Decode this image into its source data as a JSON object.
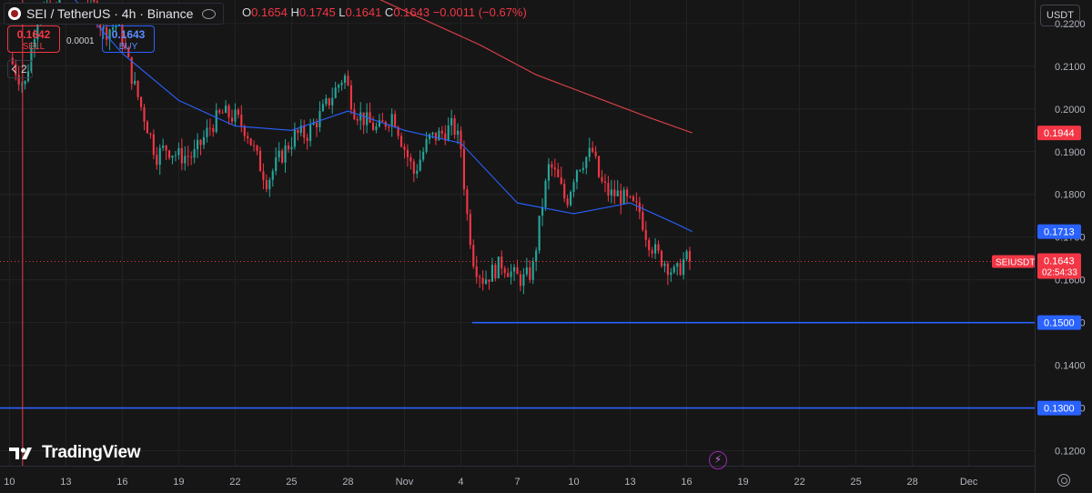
{
  "header": {
    "symbol_title": "SEI / TetherUS · 4h · Binance",
    "ohlc": {
      "o_label": "O",
      "o_value": "0.1654",
      "h_label": "H",
      "h_value": "0.1745",
      "l_label": "L",
      "l_value": "0.1641",
      "c_label": "C",
      "c_value": "0.1643",
      "change": "−0.0011 (−0.67%)"
    },
    "sell_price": "0.1642",
    "sell_label": "SELL",
    "buy_price": "0.1643",
    "buy_label": "BUY",
    "spread": "0.0001",
    "indicators_count": "2",
    "currency": "USDT"
  },
  "brand": {
    "logo_text": "TradingView"
  },
  "icons": {
    "coin": "sei-coin-icon",
    "eye": "eye-icon",
    "chevron": "chevron-down-icon",
    "bolt": "lightning-icon",
    "settings": "gear-icon"
  },
  "colors": {
    "background": "#161616",
    "up": "#26a69a",
    "down": "#f23645",
    "ma_fast": "#2962ff",
    "ma_slow": "#e0404a",
    "horizontal_line": "#2962ff",
    "grid": "#232323",
    "axis_text": "#b2b5be"
  },
  "chart_data": {
    "type": "candlestick",
    "y_ticks": [
      "0.1200",
      "0.1300",
      "0.1400",
      "0.1500",
      "0.1600",
      "0.1700",
      "0.1800",
      "0.1900",
      "0.2000",
      "0.2100",
      "0.2200"
    ],
    "ylim": [
      0.1165,
      0.2255
    ],
    "x_ticks": [
      {
        "label": "10",
        "t": 0
      },
      {
        "label": "13",
        "t": 3
      },
      {
        "label": "16",
        "t": 6
      },
      {
        "label": "19",
        "t": 9
      },
      {
        "label": "22",
        "t": 12
      },
      {
        "label": "25",
        "t": 15
      },
      {
        "label": "28",
        "t": 18
      },
      {
        "label": "Nov",
        "t": 21
      },
      {
        "label": "4",
        "t": 24
      },
      {
        "label": "7",
        "t": 27
      },
      {
        "label": "10",
        "t": 30
      },
      {
        "label": "13",
        "t": 33
      },
      {
        "label": "16",
        "t": 36
      },
      {
        "label": "19",
        "t": 39
      },
      {
        "label": "22",
        "t": 42
      },
      {
        "label": "25",
        "t": 45
      },
      {
        "label": "28",
        "t": 48
      },
      {
        "label": "Dec",
        "t": 51
      }
    ],
    "xlim": [
      -0.5,
      54.5
    ],
    "anchor_closes": [
      [
        0,
        0.212
      ],
      [
        0.8,
        0.205
      ],
      [
        1.6,
        0.225
      ],
      [
        2.3,
        0.221
      ],
      [
        3.1,
        0.235
      ],
      [
        4.0,
        0.23
      ],
      [
        5.0,
        0.218
      ],
      [
        5.8,
        0.22
      ],
      [
        6.6,
        0.206
      ],
      [
        7.4,
        0.195
      ],
      [
        7.8,
        0.189
      ],
      [
        8.3,
        0.191
      ],
      [
        9.0,
        0.189
      ],
      [
        9.8,
        0.189
      ],
      [
        10.7,
        0.196
      ],
      [
        11.3,
        0.199
      ],
      [
        12.0,
        0.198
      ],
      [
        12.6,
        0.195
      ],
      [
        13.2,
        0.188
      ],
      [
        13.7,
        0.183
      ],
      [
        14.3,
        0.188
      ],
      [
        15.2,
        0.194
      ],
      [
        15.8,
        0.194
      ],
      [
        16.6,
        0.199
      ],
      [
        17.4,
        0.205
      ],
      [
        17.8,
        0.208
      ],
      [
        18.3,
        0.2
      ],
      [
        19.0,
        0.197
      ],
      [
        19.6,
        0.195
      ],
      [
        20.4,
        0.199
      ],
      [
        20.9,
        0.192
      ],
      [
        21.5,
        0.185
      ],
      [
        22.3,
        0.193
      ],
      [
        22.9,
        0.194
      ],
      [
        23.6,
        0.196
      ],
      [
        24.0,
        0.191
      ],
      [
        24.3,
        0.176
      ],
      [
        24.7,
        0.164
      ],
      [
        25.2,
        0.16
      ],
      [
        25.7,
        0.162
      ],
      [
        26.2,
        0.164
      ],
      [
        26.8,
        0.161
      ],
      [
        27.3,
        0.16
      ],
      [
        27.8,
        0.162
      ],
      [
        28.3,
        0.177
      ],
      [
        28.7,
        0.187
      ],
      [
        29.1,
        0.184
      ],
      [
        29.6,
        0.178
      ],
      [
        30.1,
        0.186
      ],
      [
        30.5,
        0.188
      ],
      [
        31.0,
        0.19
      ],
      [
        31.4,
        0.183
      ],
      [
        31.9,
        0.18
      ],
      [
        32.4,
        0.18
      ],
      [
        32.9,
        0.178
      ],
      [
        33.5,
        0.176
      ],
      [
        33.9,
        0.17
      ],
      [
        34.4,
        0.166
      ],
      [
        34.9,
        0.164
      ],
      [
        35.4,
        0.161
      ],
      [
        35.9,
        0.165
      ],
      [
        36.3,
        0.1643
      ]
    ],
    "ma_fast": [
      [
        0,
        0.235
      ],
      [
        3.0,
        0.228
      ],
      [
        6.0,
        0.213
      ],
      [
        9.0,
        0.202
      ],
      [
        12.0,
        0.196
      ],
      [
        15.0,
        0.195
      ],
      [
        18.0,
        0.1995
      ],
      [
        21.0,
        0.195
      ],
      [
        24.0,
        0.192
      ],
      [
        27.0,
        0.178
      ],
      [
        30.0,
        0.1755
      ],
      [
        33.0,
        0.178
      ],
      [
        35.5,
        0.173
      ],
      [
        36.3,
        0.1713
      ]
    ],
    "ma_slow": [
      [
        17.4,
        0.232
      ],
      [
        19.0,
        0.227
      ],
      [
        22.0,
        0.221
      ],
      [
        25.0,
        0.215
      ],
      [
        28.0,
        0.208
      ],
      [
        31.0,
        0.203
      ],
      [
        34.0,
        0.198
      ],
      [
        36.3,
        0.1944
      ]
    ],
    "horizontal_lines": [
      {
        "label": "0.1500",
        "value": 0.15,
        "x_start": 24.6
      },
      {
        "label": "0.1300",
        "value": 0.13,
        "x_start": -0.5
      }
    ],
    "price_labels": [
      {
        "label": "0.1944",
        "value": 0.1944,
        "color": "#f23645"
      },
      {
        "label": "0.1713",
        "value": 0.1713,
        "color": "#2962ff"
      }
    ],
    "last_price": {
      "symbol": "SEIUSDT",
      "price": "0.1643",
      "countdown": "02:54:33",
      "value": 0.1643
    },
    "crosshair_t": 0.7
  }
}
